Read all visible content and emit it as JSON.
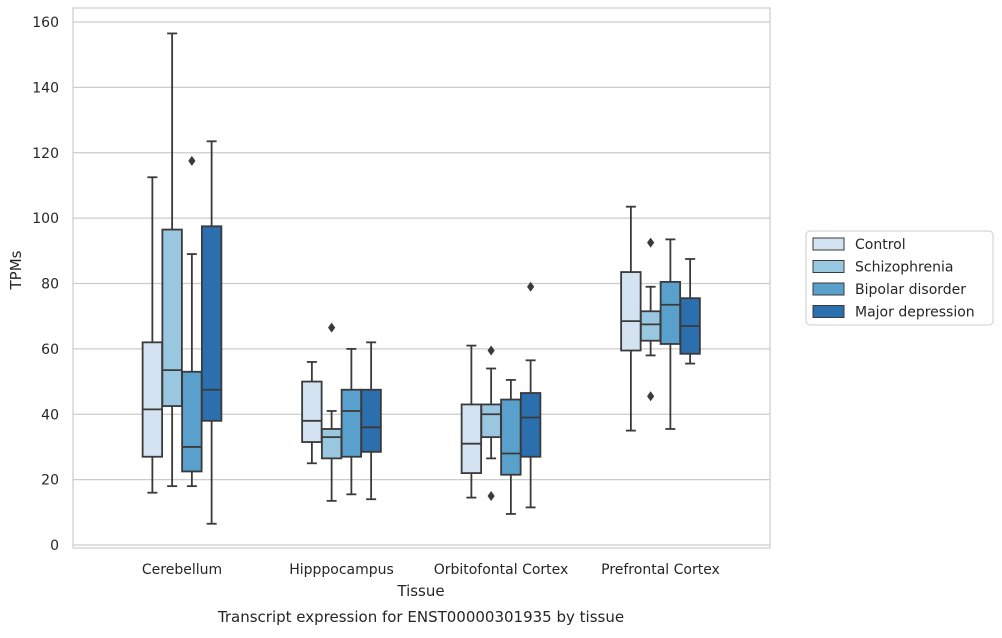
{
  "chart_data": {
    "type": "box",
    "title": "",
    "caption": "Transcript expression for ENST00000301935 by tissue",
    "xlabel": "Tissue",
    "ylabel": "TPMs",
    "ylim": [
      0,
      165
    ],
    "yticks": [
      0,
      20,
      40,
      60,
      80,
      100,
      120,
      140,
      160
    ],
    "grid": true,
    "legend_position": "right",
    "categories": [
      "Cerebellum",
      "Hipppocampus",
      "Orbitofontal Cortex",
      "Prefrontal Cortex"
    ],
    "series": [
      {
        "name": "Control",
        "color": "#d4e3f1",
        "boxes": [
          {
            "whisker_low": 16,
            "q1": 27,
            "median": 41.5,
            "q3": 62,
            "whisker_high": 112.5,
            "outliers": []
          },
          {
            "whisker_low": 25,
            "q1": 31.5,
            "median": 38,
            "q3": 50,
            "whisker_high": 56,
            "outliers": []
          },
          {
            "whisker_low": 14.5,
            "q1": 22,
            "median": 31,
            "q3": 43,
            "whisker_high": 61,
            "outliers": []
          },
          {
            "whisker_low": 35,
            "q1": 59.5,
            "median": 68.5,
            "q3": 83.5,
            "whisker_high": 103.5,
            "outliers": []
          }
        ]
      },
      {
        "name": "Schizophrenia",
        "color": "#9ac7e0",
        "boxes": [
          {
            "whisker_low": 18,
            "q1": 42.5,
            "median": 53.5,
            "q3": 96.5,
            "whisker_high": 156.5,
            "outliers": []
          },
          {
            "whisker_low": 13.5,
            "q1": 26.5,
            "median": 33,
            "q3": 35.5,
            "whisker_high": 41,
            "outliers": [
              66.5
            ]
          },
          {
            "whisker_low": 26.5,
            "q1": 33,
            "median": 40,
            "q3": 43,
            "whisker_high": 54,
            "outliers": [
              59.5,
              15
            ]
          },
          {
            "whisker_low": 58,
            "q1": 62.5,
            "median": 67.5,
            "q3": 71.5,
            "whisker_high": 79,
            "outliers": [
              92.5,
              45.5
            ]
          }
        ]
      },
      {
        "name": "Bipolar disorder",
        "color": "#5aa0cd",
        "boxes": [
          {
            "whisker_low": 18,
            "q1": 22.5,
            "median": 30,
            "q3": 53,
            "whisker_high": 89,
            "outliers": [
              117.5
            ]
          },
          {
            "whisker_low": 15.5,
            "q1": 27,
            "median": 41,
            "q3": 47.5,
            "whisker_high": 60,
            "outliers": []
          },
          {
            "whisker_low": 9.5,
            "q1": 21.5,
            "median": 28,
            "q3": 44.5,
            "whisker_high": 50.5,
            "outliers": []
          },
          {
            "whisker_low": 35.5,
            "q1": 61.5,
            "median": 73.5,
            "q3": 80.5,
            "whisker_high": 93.5,
            "outliers": []
          }
        ]
      },
      {
        "name": "Major depression",
        "color": "#2c6fae",
        "boxes": [
          {
            "whisker_low": 6.5,
            "q1": 38,
            "median": 47.5,
            "q3": 97.5,
            "whisker_high": 123.5,
            "outliers": []
          },
          {
            "whisker_low": 14,
            "q1": 28.5,
            "median": 36,
            "q3": 47.5,
            "whisker_high": 62,
            "outliers": []
          },
          {
            "whisker_low": 11.5,
            "q1": 27,
            "median": 39,
            "q3": 46.5,
            "whisker_high": 56.5,
            "outliers": [
              79
            ]
          },
          {
            "whisker_low": 55.5,
            "q1": 58.5,
            "median": 67,
            "q3": 75.5,
            "whisker_high": 87.5,
            "outliers": []
          }
        ]
      }
    ]
  }
}
